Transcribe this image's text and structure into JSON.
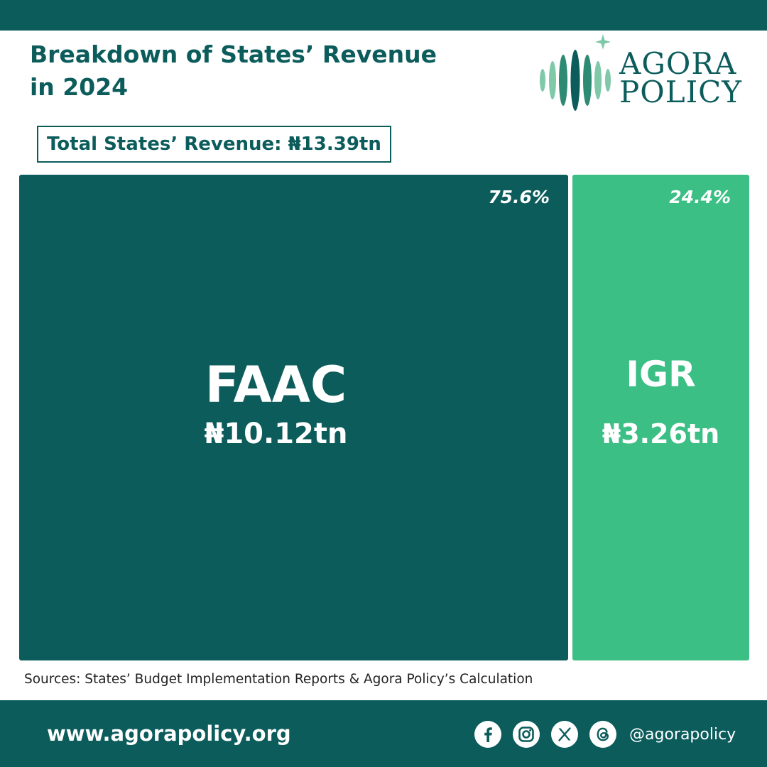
{
  "colors": {
    "dark_teal": "#0c5c5c",
    "green": "#3bbf84",
    "logo_light": "#7fc9a9",
    "logo_mid": "#2e8b73",
    "white": "#ffffff"
  },
  "title_lines": [
    "Breakdown of States’ Revenue",
    "in 2024"
  ],
  "total_label": "Total States’ Revenue: ₦13.39tn",
  "logo": {
    "line1": "AGORA",
    "line2": "POLICY"
  },
  "chart_data": {
    "type": "treemap",
    "total_value": 13.39,
    "unit": "₦ trillion",
    "items": [
      {
        "name": "FAAC",
        "value": 10.12,
        "value_label": "₦10.12tn",
        "share_label": "75.6%",
        "share": 75.6,
        "color": "#0c5c5c"
      },
      {
        "name": "IGR",
        "value": 3.26,
        "value_label": "₦3.26tn",
        "share_label": "24.4%",
        "share": 24.4,
        "color": "#3bbf84"
      }
    ]
  },
  "source": "Sources: States’ Budget Implementation Reports & Agora Policy’s Calculation",
  "footer": {
    "website": "www.agorapolicy.org",
    "handle": "@agorapolicy",
    "social_icons": [
      "facebook-icon",
      "instagram-icon",
      "x-icon",
      "threads-icon"
    ]
  }
}
